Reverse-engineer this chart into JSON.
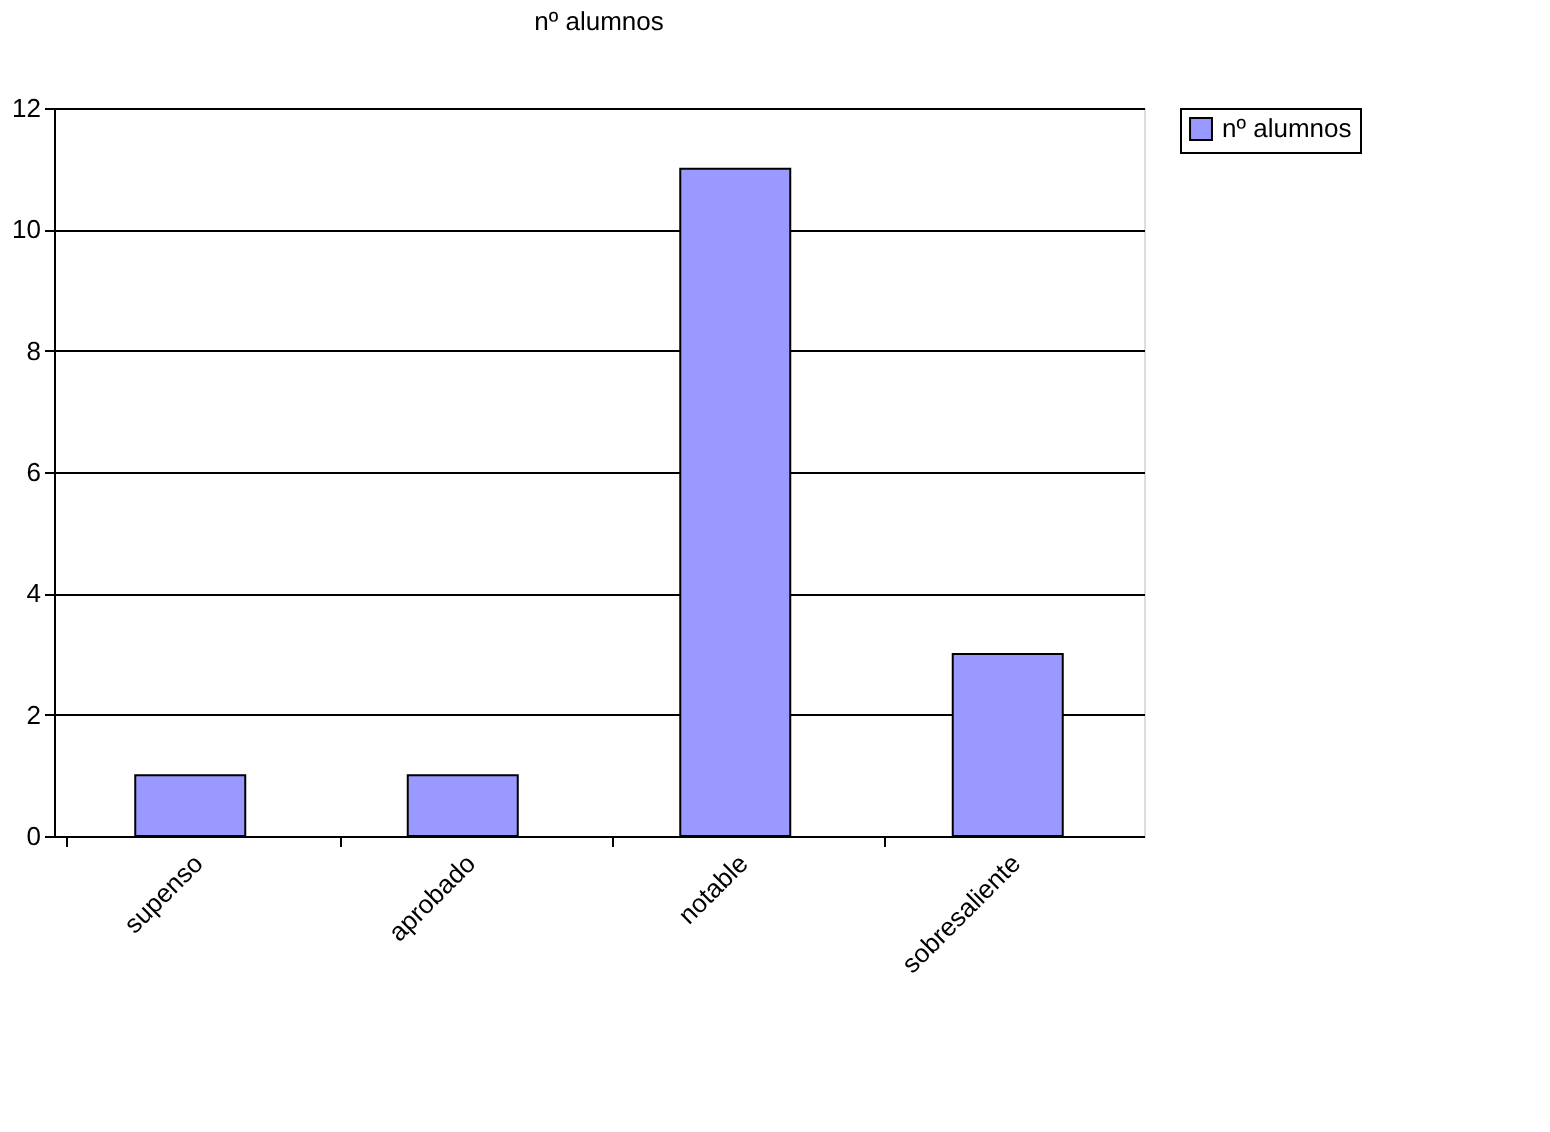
{
  "chart_data": {
    "type": "bar",
    "title": "nº alumnos",
    "categories": [
      "supenso",
      "aprobado",
      "notable",
      "sobresaliente"
    ],
    "series": [
      {
        "name": "nº alumnos",
        "color": "#9999ff",
        "values": [
          1,
          1,
          11,
          3
        ]
      }
    ],
    "ylim": [
      0,
      12
    ],
    "yticks": [
      0,
      2,
      4,
      6,
      8,
      10,
      12
    ],
    "grid": "y",
    "legend": "right"
  }
}
